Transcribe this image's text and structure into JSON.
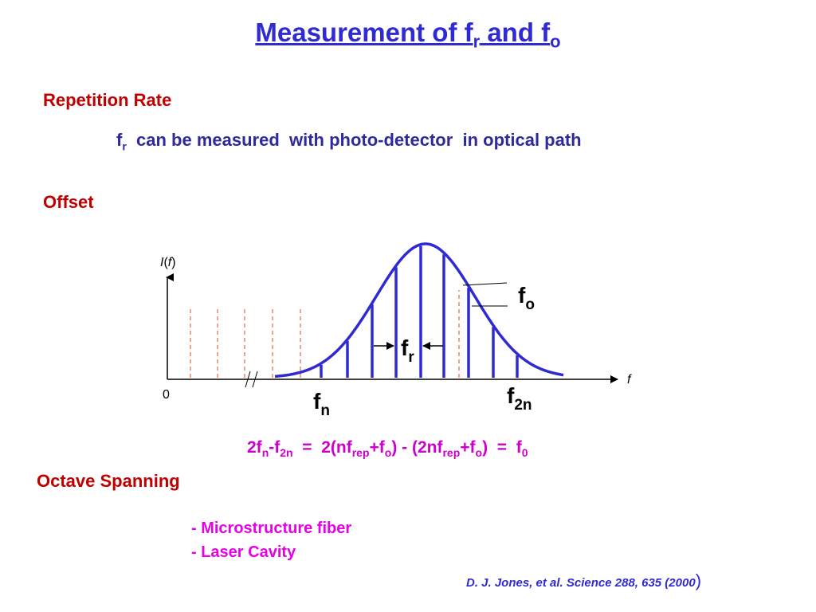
{
  "title": {
    "main": "Measurement of f",
    "sub1": "r",
    "mid": " and f",
    "sub2": "o"
  },
  "repetition": {
    "heading": "Repetition Rate",
    "line_prefix": "f",
    "line_sub": "r",
    "line_rest": "  can be measured  with photo-detector  in optical path"
  },
  "offset": {
    "heading": "Offset"
  },
  "diagram": {
    "y_axis_label_i": "I",
    "y_axis_label_rest_open": "(",
    "y_axis_label_f": "f",
    "y_axis_label_rest_close": ")",
    "x_axis_label": "f",
    "origin_label": "0",
    "fo_label": "f",
    "fo_sub": "o",
    "fr_label": "f",
    "fr_sub": "r",
    "fn_label": "f",
    "fn_sub": "n",
    "f2n_label": "f",
    "f2n_sub": "2n",
    "comb_color": "#2f2ad1",
    "dashed_color": "#e8754a"
  },
  "equation": {
    "p1": "2f",
    "s1": "n",
    "p2": "-f",
    "s2": "2n",
    "p3": "  =  2(nf",
    "s3": "rep",
    "p4": "+f",
    "s4": "o",
    "p5": ") - (2nf",
    "s5": "rep",
    "p6": "+f",
    "s6": "o",
    "p7": ")  =  f",
    "s7": "0"
  },
  "octave": {
    "heading": "Octave Spanning",
    "items": [
      "- Microstructure fiber",
      "- Laser Cavity"
    ]
  },
  "reference": {
    "text": "D. J. Jones, et al. Science 288, 635 (2000",
    "paren": ")"
  }
}
